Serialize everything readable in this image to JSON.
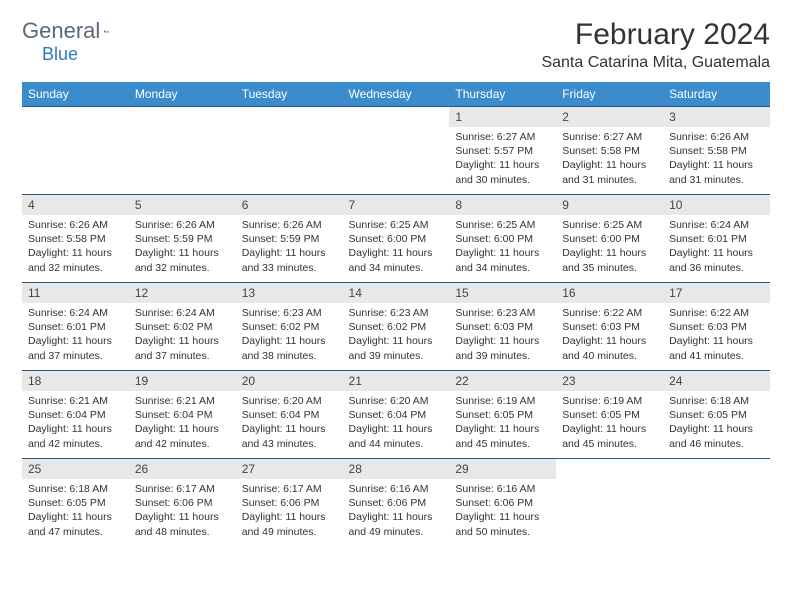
{
  "logo": {
    "text1": "General",
    "text2": "Blue"
  },
  "title": "February 2024",
  "location": "Santa Catarina Mita, Guatemala",
  "colors": {
    "header_bg": "#3b8ccc",
    "header_text": "#ffffff",
    "daynum_bg": "#e8e8e8",
    "border": "#2a5a8a",
    "logo_accent": "#2a7bbf"
  },
  "weekdays": [
    "Sunday",
    "Monday",
    "Tuesday",
    "Wednesday",
    "Thursday",
    "Friday",
    "Saturday"
  ],
  "weeks": [
    [
      null,
      null,
      null,
      null,
      {
        "n": "1",
        "sr": "6:27 AM",
        "ss": "5:57 PM",
        "dl": "11 hours and 30 minutes."
      },
      {
        "n": "2",
        "sr": "6:27 AM",
        "ss": "5:58 PM",
        "dl": "11 hours and 31 minutes."
      },
      {
        "n": "3",
        "sr": "6:26 AM",
        "ss": "5:58 PM",
        "dl": "11 hours and 31 minutes."
      }
    ],
    [
      {
        "n": "4",
        "sr": "6:26 AM",
        "ss": "5:58 PM",
        "dl": "11 hours and 32 minutes."
      },
      {
        "n": "5",
        "sr": "6:26 AM",
        "ss": "5:59 PM",
        "dl": "11 hours and 32 minutes."
      },
      {
        "n": "6",
        "sr": "6:26 AM",
        "ss": "5:59 PM",
        "dl": "11 hours and 33 minutes."
      },
      {
        "n": "7",
        "sr": "6:25 AM",
        "ss": "6:00 PM",
        "dl": "11 hours and 34 minutes."
      },
      {
        "n": "8",
        "sr": "6:25 AM",
        "ss": "6:00 PM",
        "dl": "11 hours and 34 minutes."
      },
      {
        "n": "9",
        "sr": "6:25 AM",
        "ss": "6:00 PM",
        "dl": "11 hours and 35 minutes."
      },
      {
        "n": "10",
        "sr": "6:24 AM",
        "ss": "6:01 PM",
        "dl": "11 hours and 36 minutes."
      }
    ],
    [
      {
        "n": "11",
        "sr": "6:24 AM",
        "ss": "6:01 PM",
        "dl": "11 hours and 37 minutes."
      },
      {
        "n": "12",
        "sr": "6:24 AM",
        "ss": "6:02 PM",
        "dl": "11 hours and 37 minutes."
      },
      {
        "n": "13",
        "sr": "6:23 AM",
        "ss": "6:02 PM",
        "dl": "11 hours and 38 minutes."
      },
      {
        "n": "14",
        "sr": "6:23 AM",
        "ss": "6:02 PM",
        "dl": "11 hours and 39 minutes."
      },
      {
        "n": "15",
        "sr": "6:23 AM",
        "ss": "6:03 PM",
        "dl": "11 hours and 39 minutes."
      },
      {
        "n": "16",
        "sr": "6:22 AM",
        "ss": "6:03 PM",
        "dl": "11 hours and 40 minutes."
      },
      {
        "n": "17",
        "sr": "6:22 AM",
        "ss": "6:03 PM",
        "dl": "11 hours and 41 minutes."
      }
    ],
    [
      {
        "n": "18",
        "sr": "6:21 AM",
        "ss": "6:04 PM",
        "dl": "11 hours and 42 minutes."
      },
      {
        "n": "19",
        "sr": "6:21 AM",
        "ss": "6:04 PM",
        "dl": "11 hours and 42 minutes."
      },
      {
        "n": "20",
        "sr": "6:20 AM",
        "ss": "6:04 PM",
        "dl": "11 hours and 43 minutes."
      },
      {
        "n": "21",
        "sr": "6:20 AM",
        "ss": "6:04 PM",
        "dl": "11 hours and 44 minutes."
      },
      {
        "n": "22",
        "sr": "6:19 AM",
        "ss": "6:05 PM",
        "dl": "11 hours and 45 minutes."
      },
      {
        "n": "23",
        "sr": "6:19 AM",
        "ss": "6:05 PM",
        "dl": "11 hours and 45 minutes."
      },
      {
        "n": "24",
        "sr": "6:18 AM",
        "ss": "6:05 PM",
        "dl": "11 hours and 46 minutes."
      }
    ],
    [
      {
        "n": "25",
        "sr": "6:18 AM",
        "ss": "6:05 PM",
        "dl": "11 hours and 47 minutes."
      },
      {
        "n": "26",
        "sr": "6:17 AM",
        "ss": "6:06 PM",
        "dl": "11 hours and 48 minutes."
      },
      {
        "n": "27",
        "sr": "6:17 AM",
        "ss": "6:06 PM",
        "dl": "11 hours and 49 minutes."
      },
      {
        "n": "28",
        "sr": "6:16 AM",
        "ss": "6:06 PM",
        "dl": "11 hours and 49 minutes."
      },
      {
        "n": "29",
        "sr": "6:16 AM",
        "ss": "6:06 PM",
        "dl": "11 hours and 50 minutes."
      },
      null,
      null
    ]
  ],
  "labels": {
    "sunrise": "Sunrise: ",
    "sunset": "Sunset: ",
    "daylight": "Daylight: "
  }
}
